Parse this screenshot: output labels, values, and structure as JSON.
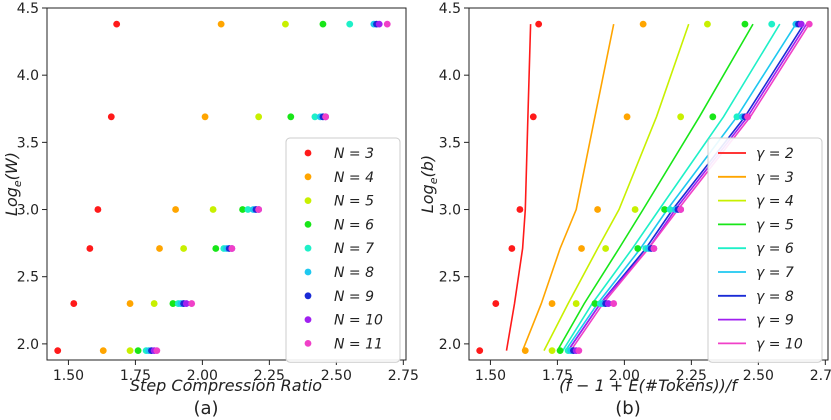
{
  "chart_data": [
    {
      "type": "scatter",
      "panel_label": "(a)",
      "xlabel": "Step Compression Ratio",
      "ylabel": "Log_e(W)",
      "xlim": [
        1.42,
        2.76
      ],
      "ylim": [
        1.88,
        4.5
      ],
      "xticks": [
        "1.50",
        "1.75",
        "2.00",
        "2.25",
        "2.50",
        "2.75"
      ],
      "xtick_values": [
        1.5,
        1.75,
        2.0,
        2.25,
        2.5,
        2.75
      ],
      "yticks": [
        "2.0",
        "2.5",
        "3.0",
        "3.5",
        "4.0",
        "4.5"
      ],
      "ytick_values": [
        2.0,
        2.5,
        3.0,
        3.5,
        4.0,
        4.5
      ],
      "legend_position": "lower-right",
      "y_levels": [
        1.95,
        2.3,
        2.71,
        3.0,
        3.69,
        4.38
      ],
      "series": [
        {
          "name": "N = 3",
          "color": "#ff1a1a",
          "x": [
            1.46,
            1.52,
            1.58,
            1.61,
            1.66,
            1.68
          ]
        },
        {
          "name": "N = 4",
          "color": "#ffa500",
          "x": [
            1.63,
            1.73,
            1.84,
            1.9,
            2.01,
            2.07
          ]
        },
        {
          "name": "N = 5",
          "color": "#c8f000",
          "x": [
            1.73,
            1.82,
            1.93,
            2.04,
            2.21,
            2.31
          ]
        },
        {
          "name": "N = 6",
          "color": "#18e618",
          "x": [
            1.76,
            1.89,
            2.05,
            2.15,
            2.33,
            2.45
          ]
        },
        {
          "name": "N = 7",
          "color": "#1ef0c8",
          "x": [
            1.79,
            1.91,
            2.08,
            2.17,
            2.42,
            2.55
          ]
        },
        {
          "name": "N = 8",
          "color": "#1ec8f0",
          "x": [
            1.8,
            1.92,
            2.09,
            2.19,
            2.44,
            2.64
          ]
        },
        {
          "name": "N = 9",
          "color": "#1a2bd6",
          "x": [
            1.81,
            1.93,
            2.1,
            2.2,
            2.45,
            2.65
          ]
        },
        {
          "name": "N = 10",
          "color": "#a020f0",
          "x": [
            1.82,
            1.94,
            2.11,
            2.21,
            2.46,
            2.66
          ]
        },
        {
          "name": "N = 11",
          "color": "#f040c8",
          "x": [
            1.83,
            1.96,
            2.11,
            2.21,
            2.46,
            2.69
          ]
        }
      ]
    },
    {
      "type": "line",
      "panel_label": "(b)",
      "xlabel": "(f − 1 + E(#Tokens))/f",
      "ylabel": "Log_e(b)",
      "xlim": [
        1.42,
        2.76
      ],
      "ylim": [
        1.88,
        4.5
      ],
      "xticks": [
        "1.50",
        "1.75",
        "2.00",
        "2.25",
        "2.50",
        "2.75"
      ],
      "xtick_values": [
        1.5,
        1.75,
        2.0,
        2.25,
        2.5,
        2.75
      ],
      "yticks": [
        "2.0",
        "2.5",
        "3.0",
        "3.5",
        "4.0",
        "4.5"
      ],
      "ytick_values": [
        2.0,
        2.5,
        3.0,
        3.5,
        4.0,
        4.5
      ],
      "legend_position": "lower-right",
      "y_levels": [
        1.95,
        2.3,
        2.71,
        3.0,
        3.69,
        4.38
      ],
      "series": [
        {
          "name": "γ = 2",
          "color": "#ff1a1a",
          "line_x": [
            1.56,
            1.59,
            1.62,
            1.63,
            1.64,
            1.65
          ]
        },
        {
          "name": "γ = 3",
          "color": "#ffa500",
          "line_x": [
            1.62,
            1.69,
            1.76,
            1.82,
            1.89,
            1.96
          ]
        },
        {
          "name": "γ = 4",
          "color": "#c8f000",
          "line_x": [
            1.7,
            1.79,
            1.9,
            1.98,
            2.12,
            2.24
          ]
        },
        {
          "name": "γ = 5",
          "color": "#18e618",
          "line_x": [
            1.75,
            1.85,
            1.98,
            2.07,
            2.28,
            2.48
          ]
        },
        {
          "name": "γ = 6",
          "color": "#1ef0c8",
          "line_x": [
            1.77,
            1.88,
            2.03,
            2.13,
            2.37,
            2.58
          ]
        },
        {
          "name": "γ = 7",
          "color": "#1ec8f0",
          "line_x": [
            1.78,
            1.9,
            2.06,
            2.16,
            2.42,
            2.64
          ]
        },
        {
          "name": "γ = 8",
          "color": "#1a2bd6",
          "line_x": [
            1.79,
            1.91,
            2.08,
            2.18,
            2.45,
            2.67
          ]
        },
        {
          "name": "γ = 9",
          "color": "#a020f0",
          "line_x": [
            1.79,
            1.91,
            2.09,
            2.19,
            2.46,
            2.68
          ]
        },
        {
          "name": "γ = 10",
          "color": "#f040c8",
          "line_x": [
            1.8,
            1.92,
            2.09,
            2.2,
            2.47,
            2.69
          ]
        }
      ],
      "scatter_series": [
        {
          "color": "#ff1a1a",
          "x": [
            1.46,
            1.52,
            1.58,
            1.61,
            1.66,
            1.68
          ]
        },
        {
          "color": "#ffa500",
          "x": [
            1.63,
            1.73,
            1.84,
            1.9,
            2.01,
            2.07
          ]
        },
        {
          "color": "#c8f000",
          "x": [
            1.73,
            1.82,
            1.93,
            2.04,
            2.21,
            2.31
          ]
        },
        {
          "color": "#18e618",
          "x": [
            1.76,
            1.89,
            2.05,
            2.15,
            2.33,
            2.45
          ]
        },
        {
          "color": "#1ef0c8",
          "x": [
            1.79,
            1.91,
            2.08,
            2.17,
            2.42,
            2.55
          ]
        },
        {
          "color": "#1ec8f0",
          "x": [
            1.8,
            1.92,
            2.09,
            2.19,
            2.44,
            2.64
          ]
        },
        {
          "color": "#1a2bd6",
          "x": [
            1.81,
            1.93,
            2.1,
            2.2,
            2.45,
            2.65
          ]
        },
        {
          "color": "#a020f0",
          "x": [
            1.82,
            1.94,
            2.11,
            2.21,
            2.46,
            2.66
          ]
        },
        {
          "color": "#f040c8",
          "x": [
            1.83,
            1.96,
            2.11,
            2.21,
            2.46,
            2.69
          ]
        }
      ]
    }
  ]
}
